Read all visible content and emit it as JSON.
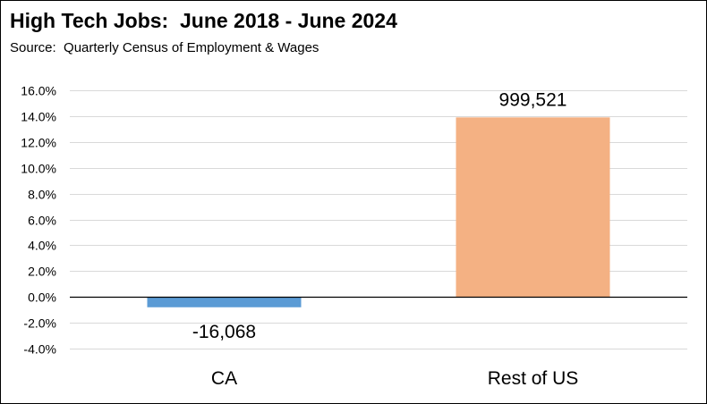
{
  "title": "High Tech Jobs:  June 2018 - June 2024",
  "subtitle": "Source:  Quarterly Census of Employment & Wages",
  "colors": {
    "gridline": "#d9d9d9",
    "axis": "#000000"
  },
  "chart_data": {
    "type": "bar",
    "title": "High Tech Jobs:  June 2018 - June 2024",
    "subtitle": "Source:  Quarterly Census of Employment & Wages",
    "categories": [
      "CA",
      "Rest of US"
    ],
    "values": [
      -0.8,
      13.9
    ],
    "value_unit": "percent",
    "data_labels": [
      "-16,068",
      "999,521"
    ],
    "bar_colors": [
      "#5b9bd5",
      "#f4b183"
    ],
    "ylim": [
      -4,
      16
    ],
    "y_ticks": [
      16,
      14,
      12,
      10,
      8,
      6,
      4,
      2,
      0,
      -2,
      -4
    ],
    "y_tick_labels": [
      "16.0%",
      "14.0%",
      "12.0%",
      "10.0%",
      "8.0%",
      "6.0%",
      "4.0%",
      "2.0%",
      "0.0%",
      "-2.0%",
      "-4.0%"
    ],
    "grid": true,
    "legend": "none",
    "xlabel": "",
    "ylabel": ""
  }
}
